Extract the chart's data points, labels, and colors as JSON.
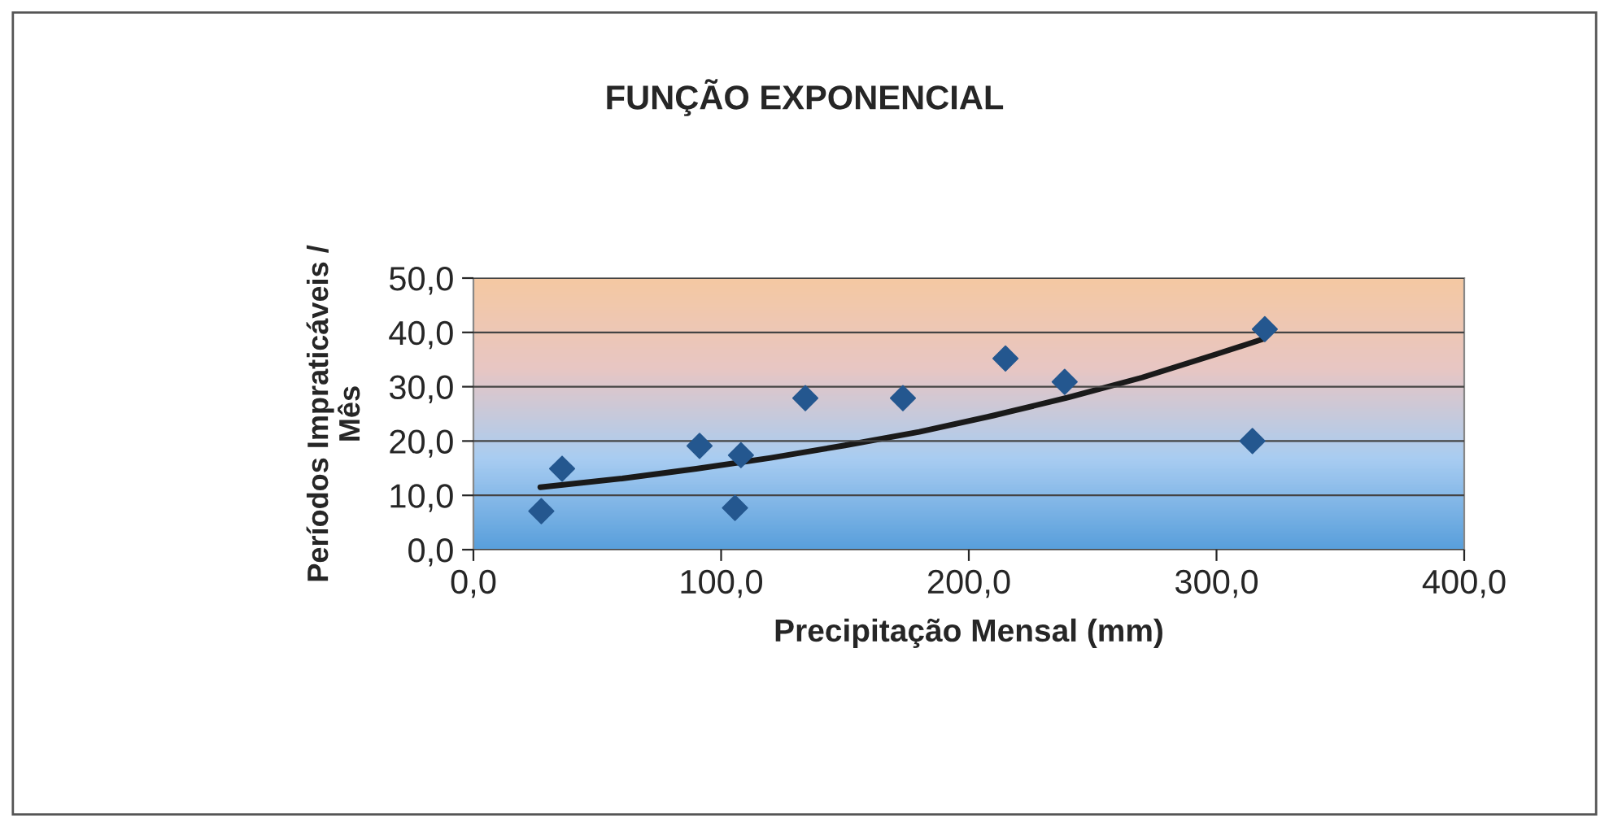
{
  "chart_data": {
    "type": "scatter",
    "title": "FUNÇÃO EXPONENCIAL",
    "xlabel": "Precipitação Mensal (mm)",
    "ylabel": "Períodos Impraticáveis /\nMês",
    "series": [
      {
        "color": "#24578f",
        "marker": "diamond",
        "x": [
          27.4,
          35.8,
          91.3,
          105.6,
          108,
          134,
          173.4,
          214.8,
          238.7,
          314.5,
          319.5
        ],
        "values": [
          7.1,
          14.9,
          19.1,
          7.7,
          17.4,
          27.9,
          27.9,
          35.2,
          30.9,
          20.0,
          40.6
        ]
      },
      {
        "type": "line",
        "color": "#1a1a1a",
        "marker": "none",
        "line_style": "solid",
        "x": [
          27,
          60,
          90,
          120,
          150,
          180,
          210,
          240,
          270,
          300,
          319
        ],
        "values": [
          11.5,
          13.1,
          14.9,
          16.9,
          19.2,
          21.7,
          24.7,
          28.0,
          31.7,
          36.0,
          38.8
        ]
      }
    ],
    "xlim": [
      0,
      400
    ],
    "xticks": [
      {
        "value": 0,
        "label": "0,0"
      },
      {
        "value": 100,
        "label": "100,0"
      },
      {
        "value": 200,
        "label": "200,0"
      },
      {
        "value": 300,
        "label": "300,0"
      },
      {
        "value": 400,
        "label": "400,0"
      }
    ],
    "ylim": [
      0,
      50
    ],
    "yticks": [
      {
        "value": 0,
        "label": "0,0"
      },
      {
        "value": 10,
        "label": "10,0"
      },
      {
        "value": 20,
        "label": "20,0"
      },
      {
        "value": 30,
        "label": "30,0"
      },
      {
        "value": 40,
        "label": "40,0"
      },
      {
        "value": 50,
        "label": "50,0"
      }
    ],
    "grid": "y",
    "legend": false
  }
}
